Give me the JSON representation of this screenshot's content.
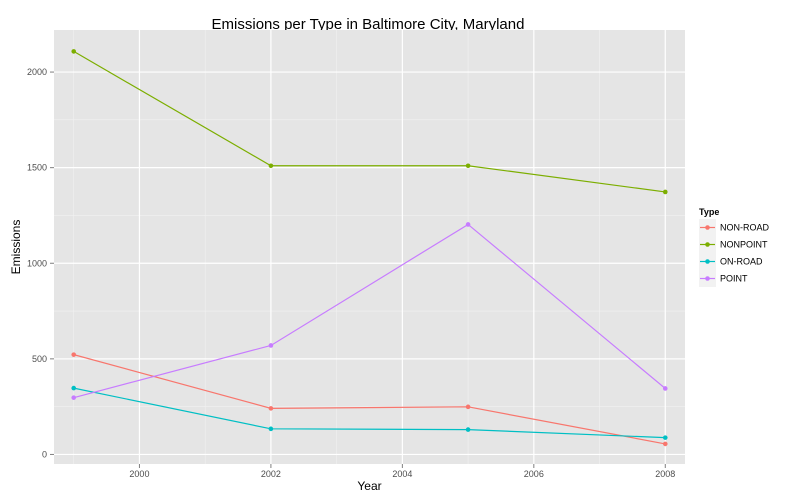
{
  "chart_data": {
    "type": "line",
    "title": "Emissions per Type in Baltimore City, Maryland",
    "xlabel": "Year",
    "ylabel": "Emissions",
    "x": [
      1999,
      2002,
      2005,
      2008
    ],
    "xlim": [
      1998.7,
      2008.3
    ],
    "ylim": [
      -50,
      2220
    ],
    "x_ticks": [
      2000,
      2002,
      2004,
      2006,
      2008
    ],
    "y_ticks": [
      0,
      500,
      1000,
      1500,
      2000
    ],
    "grid": true,
    "legend": {
      "title": "Type",
      "placement": "right"
    },
    "series": [
      {
        "name": "NON-ROAD",
        "color": "#f8766d",
        "values": [
          522,
          241,
          249,
          55
        ]
      },
      {
        "name": "NONPOINT",
        "color": "#7cae00",
        "values": [
          2108,
          1510,
          1510,
          1373
        ]
      },
      {
        "name": "ON-ROAD",
        "color": "#00bfc4",
        "values": [
          347,
          134,
          130,
          88
        ]
      },
      {
        "name": "POINT",
        "color": "#c77cff",
        "values": [
          297,
          570,
          1203,
          345
        ]
      }
    ]
  }
}
